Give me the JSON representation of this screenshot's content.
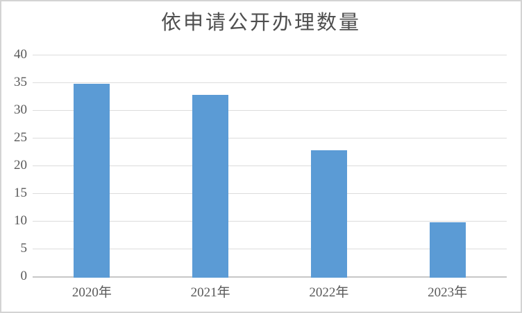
{
  "window": {
    "background": "#FFFFFF",
    "border_color": "#D3D3D3"
  },
  "chart_data": {
    "type": "bar",
    "title": "依申请公开办理数量",
    "categories": [
      "2020年",
      "2021年",
      "2022年",
      "2023年"
    ],
    "values": [
      35,
      33,
      23,
      10
    ],
    "xlabel": "",
    "ylabel": "",
    "ylim": [
      0,
      40
    ],
    "yticks": [
      0,
      5,
      10,
      15,
      20,
      25,
      30,
      35,
      40
    ],
    "grid": true,
    "legend_position": "none",
    "bar_color": "#5B9BD5",
    "gridline_color": "#DCDCDC",
    "axis_line_color": "#C7C7C7",
    "label_color": "#595959",
    "title_color": "#4F4F4F"
  }
}
